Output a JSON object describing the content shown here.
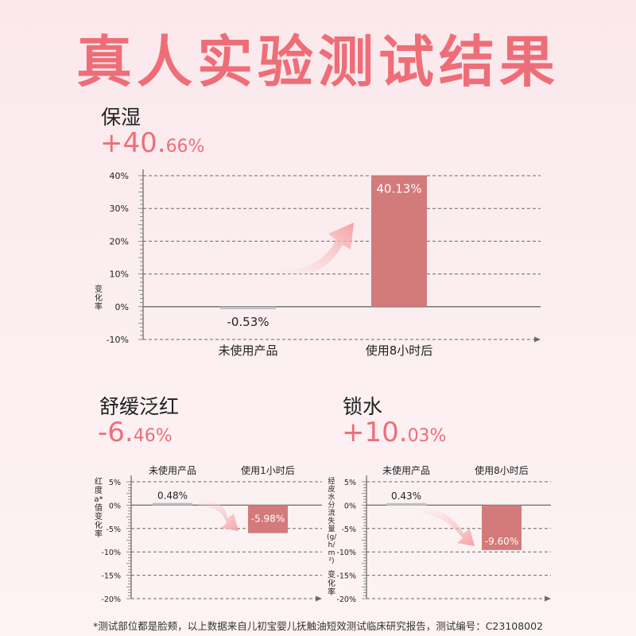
{
  "title": "真人实验测试结果",
  "footnote": "*测试部位都是脸颊，以上数据来自儿初宝婴儿抚触油短效测试临床研究报告，测试编号：C23108002",
  "colors": {
    "accent": "#ee6e78",
    "bar_after": "#d37a7a",
    "bar_before": "#bfbfbf",
    "arrow": "#f6a8aa"
  },
  "chart_data": [
    {
      "id": "moisturizing",
      "type": "bar",
      "title": "保湿",
      "headline_main": "+40.",
      "headline_decimal": "66%",
      "ylabel": "变化率",
      "categories": [
        "未使用产品",
        "使用8小时后"
      ],
      "values": [
        -0.53,
        40.13
      ],
      "data_labels": [
        "-0.53%",
        "40.13%"
      ],
      "ylim": [
        -10,
        40
      ],
      "ticks": [
        40,
        30,
        20,
        10,
        0,
        -10
      ],
      "tick_labels": [
        "40%",
        "30%",
        "20%",
        "10%",
        "0%",
        "-10%"
      ],
      "grid": true
    },
    {
      "id": "redness",
      "type": "bar",
      "title": "舒缓泛红",
      "headline_main": "-6.",
      "headline_decimal": "46%",
      "ylabel": "红度a*值变化率",
      "categories": [
        "未使用产品",
        "使用1小时后"
      ],
      "values": [
        0.48,
        -5.98
      ],
      "data_labels": [
        "0.48%",
        "-5.98%"
      ],
      "ylim": [
        -20,
        5
      ],
      "ticks": [
        5,
        0,
        -5,
        -10,
        -15,
        -20
      ],
      "tick_labels": [
        "5%",
        "0%",
        "-5%",
        "-10%",
        "-15%",
        "-20%"
      ],
      "grid": true
    },
    {
      "id": "water-lock",
      "type": "bar",
      "title": "锁水",
      "headline_main": "+10.",
      "headline_decimal": "03%",
      "ylabel": "经皮水分流失量(g/h/m²)",
      "ylabel2": "变化率",
      "categories": [
        "未使用产品",
        "使用8小时后"
      ],
      "values": [
        0.43,
        -9.6
      ],
      "data_labels": [
        "0.43%",
        "-9.60%"
      ],
      "ylim": [
        -20,
        5
      ],
      "ticks": [
        5,
        0,
        -5,
        -10,
        -15,
        -20
      ],
      "tick_labels": [
        "5%",
        "0%",
        "-5%",
        "-10%",
        "-15%",
        "-20%"
      ],
      "grid": true
    }
  ]
}
